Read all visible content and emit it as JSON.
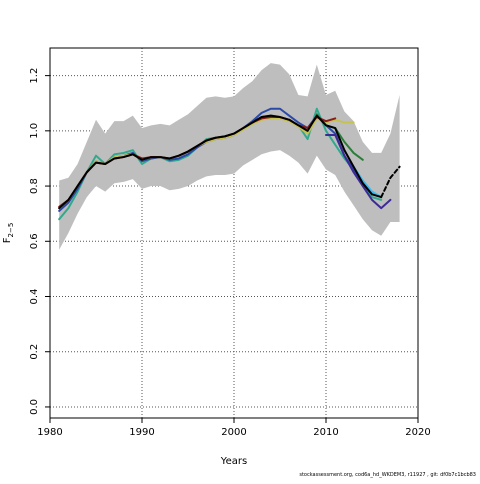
{
  "chart_data": {
    "type": "line",
    "xlabel": "Years",
    "ylabel": "F",
    "ylabel_sub": "2−5",
    "xlim": [
      1980,
      2020
    ],
    "ylim": [
      -0.04,
      1.3
    ],
    "xticks": [
      1980,
      1990,
      2000,
      2010,
      2020
    ],
    "yticks": [
      0.0,
      0.2,
      0.4,
      0.6,
      0.8,
      1.0,
      1.2
    ],
    "ytick_labels": [
      "0.0",
      "0.2",
      "0.4",
      "0.6",
      "0.8",
      "1.0",
      "1.2"
    ],
    "grid": true,
    "band": {
      "x": [
        1981,
        1982,
        1983,
        1984,
        1985,
        1986,
        1987,
        1988,
        1989,
        1990,
        1991,
        1992,
        1993,
        1994,
        1995,
        1996,
        1997,
        1998,
        1999,
        2000,
        2001,
        2002,
        2003,
        2004,
        2005,
        2006,
        2007,
        2008,
        2009,
        2010,
        2011,
        2012,
        2013,
        2014,
        2015,
        2016,
        2017,
        2018
      ],
      "lower": [
        0.57,
        0.63,
        0.7,
        0.76,
        0.8,
        0.78,
        0.81,
        0.815,
        0.825,
        0.79,
        0.8,
        0.8,
        0.785,
        0.79,
        0.8,
        0.82,
        0.835,
        0.84,
        0.84,
        0.845,
        0.875,
        0.895,
        0.915,
        0.925,
        0.93,
        0.91,
        0.885,
        0.845,
        0.91,
        0.86,
        0.84,
        0.78,
        0.73,
        0.68,
        0.64,
        0.62,
        0.67,
        0.67
      ],
      "upper": [
        0.82,
        0.83,
        0.88,
        0.96,
        1.04,
        0.99,
        1.035,
        1.035,
        1.055,
        1.01,
        1.02,
        1.025,
        1.02,
        1.04,
        1.06,
        1.09,
        1.12,
        1.125,
        1.12,
        1.125,
        1.155,
        1.18,
        1.22,
        1.245,
        1.24,
        1.205,
        1.13,
        1.125,
        1.24,
        1.13,
        1.145,
        1.07,
        1.035,
        0.96,
        0.92,
        0.92,
        0.99,
        1.13
      ],
      "color": "#bebebe"
    },
    "series": [
      {
        "color": "#31a98e",
        "x": [
          1981,
          1982,
          1983,
          1984,
          1985,
          1986,
          1987,
          1988,
          1989,
          1990,
          1991,
          1992,
          1993,
          1994,
          1995,
          1996,
          1997,
          1998,
          1999,
          2000,
          2001,
          2002,
          2003,
          2004,
          2005,
          2006,
          2007,
          2008,
          2009,
          2010,
          2011,
          2012,
          2013,
          2014,
          2015,
          2016
        ],
        "y": [
          0.68,
          0.72,
          0.78,
          0.85,
          0.91,
          0.88,
          0.915,
          0.92,
          0.93,
          0.88,
          0.9,
          0.905,
          0.89,
          0.895,
          0.91,
          0.94,
          0.97,
          0.975,
          0.98,
          0.99,
          1.01,
          1.03,
          1.05,
          1.055,
          1.05,
          1.04,
          1.02,
          0.97,
          1.08,
          1.0,
          0.95,
          0.9,
          0.86,
          0.8,
          0.76,
          0.75
        ]
      },
      {
        "color": "#3bbced",
        "x": [
          2013,
          2014,
          2015,
          2016
        ],
        "y": [
          0.87,
          0.82,
          0.78,
          0.76
        ]
      },
      {
        "color": "#2b4aa8",
        "x": [
          1981,
          1982,
          1983,
          1984,
          1985,
          1986,
          1987,
          1988,
          1989,
          1990,
          1991,
          1992,
          1993,
          1994,
          1995,
          1996,
          1997,
          1998,
          1999,
          2000,
          2001,
          2002,
          2003,
          2004,
          2005,
          2006,
          2007,
          2008,
          2009,
          2010,
          2011,
          2012,
          2013,
          2014,
          2015
        ],
        "y": [
          0.71,
          0.74,
          0.79,
          0.85,
          0.89,
          0.88,
          0.905,
          0.91,
          0.92,
          0.89,
          0.9,
          0.905,
          0.895,
          0.9,
          0.915,
          0.94,
          0.96,
          0.97,
          0.975,
          0.985,
          1.01,
          1.035,
          1.065,
          1.08,
          1.08,
          1.055,
          1.03,
          1.01,
          1.055,
          1.02,
          0.99,
          0.91,
          0.86,
          0.81,
          0.77
        ]
      },
      {
        "color": "#3d2a96",
        "x": [
          2010,
          2011,
          2012,
          2013,
          2014,
          2015,
          2016,
          2017
        ],
        "y": [
          0.985,
          0.985,
          0.91,
          0.85,
          0.8,
          0.75,
          0.72,
          0.75
        ]
      },
      {
        "color": "#c6c24f",
        "x": [
          1981,
          1982,
          1983,
          1984,
          1985,
          1986,
          1987,
          1988,
          1989,
          1990,
          1991,
          1992,
          1993,
          1994,
          1995,
          1996,
          1997,
          1998,
          1999,
          2000,
          2001,
          2002,
          2003,
          2004,
          2005,
          2006,
          2007,
          2008,
          2009,
          2010,
          2011,
          2012,
          2013
        ],
        "y": [
          0.72,
          0.75,
          0.8,
          0.85,
          0.89,
          0.88,
          0.905,
          0.91,
          0.915,
          0.895,
          0.905,
          0.905,
          0.9,
          0.91,
          0.925,
          0.945,
          0.96,
          0.97,
          0.975,
          0.985,
          1.005,
          1.025,
          1.04,
          1.045,
          1.045,
          1.035,
          1.015,
          0.99,
          1.045,
          1.03,
          1.04,
          1.03,
          1.03
        ]
      },
      {
        "color": "#2b7d3a",
        "x": [
          2009,
          2010,
          2011,
          2012,
          2013,
          2014
        ],
        "y": [
          1.06,
          1.02,
          1.01,
          0.96,
          0.92,
          0.895
        ]
      },
      {
        "color": "#8b1a1a",
        "x": [
          1981,
          1982,
          1983,
          1984,
          1985,
          1986,
          1987,
          1988,
          1989,
          1990,
          1991,
          1992,
          1993,
          1994,
          1995,
          1996,
          1997,
          1998,
          1999,
          2000,
          2001,
          2002,
          2003,
          2004,
          2005,
          2006,
          2007,
          2008,
          2009,
          2010,
          2011
        ],
        "y": [
          0.725,
          0.75,
          0.8,
          0.85,
          0.885,
          0.88,
          0.9,
          0.905,
          0.915,
          0.9,
          0.905,
          0.905,
          0.9,
          0.91,
          0.925,
          0.945,
          0.965,
          0.975,
          0.98,
          0.99,
          1.01,
          1.03,
          1.045,
          1.05,
          1.05,
          1.04,
          1.02,
          1.01,
          1.05,
          1.035,
          1.045
        ]
      },
      {
        "color": "#000000",
        "x": [
          1981,
          1982,
          1983,
          1984,
          1985,
          1986,
          1987,
          1988,
          1989,
          1990,
          1991,
          1992,
          1993,
          1994,
          1995,
          1996,
          1997,
          1998,
          1999,
          2000,
          2001,
          2002,
          2003,
          2004,
          2005,
          2006,
          2007,
          2008,
          2009,
          2010,
          2011,
          2012,
          2013,
          2014,
          2015,
          2016
        ],
        "y": [
          0.72,
          0.75,
          0.8,
          0.85,
          0.885,
          0.88,
          0.9,
          0.905,
          0.915,
          0.895,
          0.905,
          0.905,
          0.9,
          0.91,
          0.925,
          0.945,
          0.965,
          0.975,
          0.98,
          0.99,
          1.01,
          1.03,
          1.05,
          1.055,
          1.05,
          1.04,
          1.02,
          1.0,
          1.055,
          1.02,
          1.01,
          0.93,
          0.87,
          0.81,
          0.77,
          0.76
        ]
      },
      {
        "color": "#000000",
        "dashed": true,
        "x": [
          2016,
          2017,
          2018
        ],
        "y": [
          0.76,
          0.83,
          0.87
        ]
      }
    ]
  },
  "footer": "stockassessment.org, cod6a_hd_WKDEM3, r11927 , git: df0b7c1bcb83"
}
